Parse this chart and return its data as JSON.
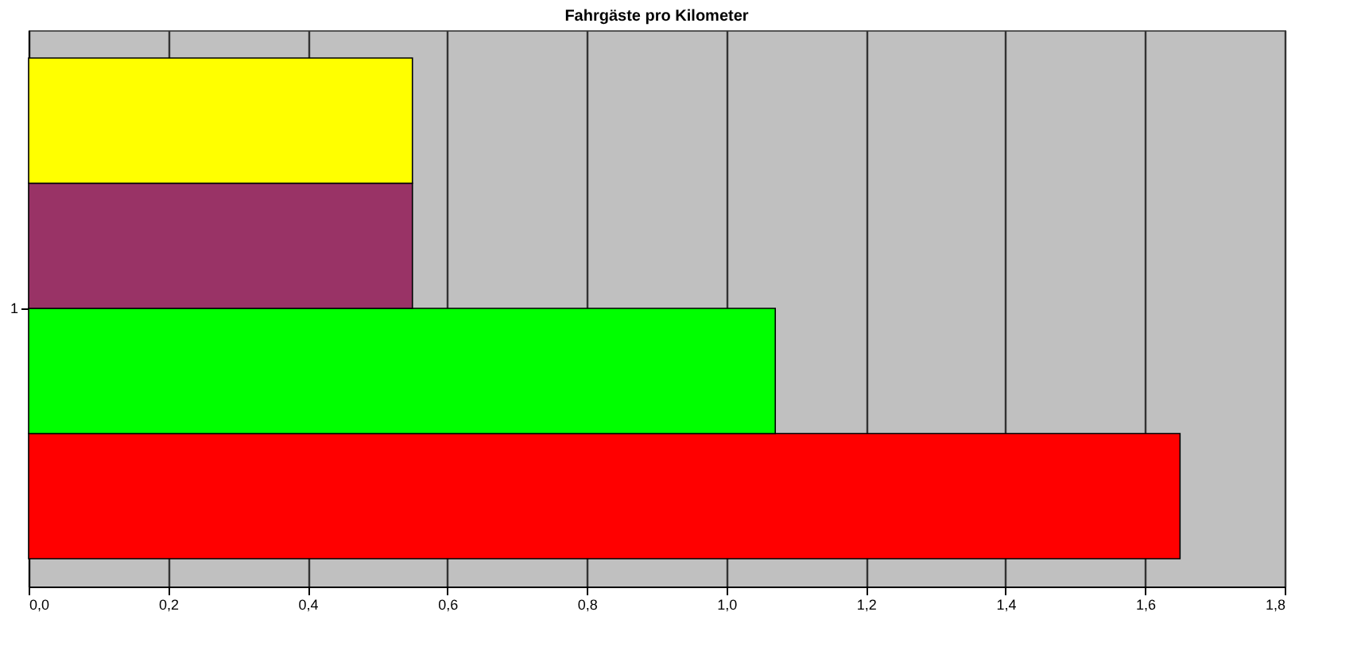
{
  "chart_data": {
    "type": "bar",
    "title": "Fahrgäste pro Kilometer",
    "orientation": "horizontal",
    "categories": [
      "1"
    ],
    "series": [
      {
        "color": "#ff0000",
        "values": [
          1.65
        ]
      },
      {
        "color": "#00ff00",
        "values": [
          1.07
        ]
      },
      {
        "color": "#993366",
        "values": [
          0.55
        ]
      },
      {
        "color": "#ffff00",
        "values": [
          0.55
        ]
      }
    ],
    "xlim": [
      0,
      1.8
    ],
    "xticks": [
      {
        "value": 0,
        "label": "0,0"
      },
      {
        "value": 0.2,
        "label": "0,2"
      },
      {
        "value": 0.4,
        "label": "0,4"
      },
      {
        "value": 0.6,
        "label": "0,6"
      },
      {
        "value": 0.8,
        "label": "0,8"
      },
      {
        "value": 1,
        "label": "1,0"
      },
      {
        "value": 1.2,
        "label": "1,2"
      },
      {
        "value": 1.4,
        "label": "1,4"
      },
      {
        "value": 1.6,
        "label": "1,6"
      },
      {
        "value": 1.8,
        "label": "1,8"
      }
    ],
    "grid": "x"
  }
}
